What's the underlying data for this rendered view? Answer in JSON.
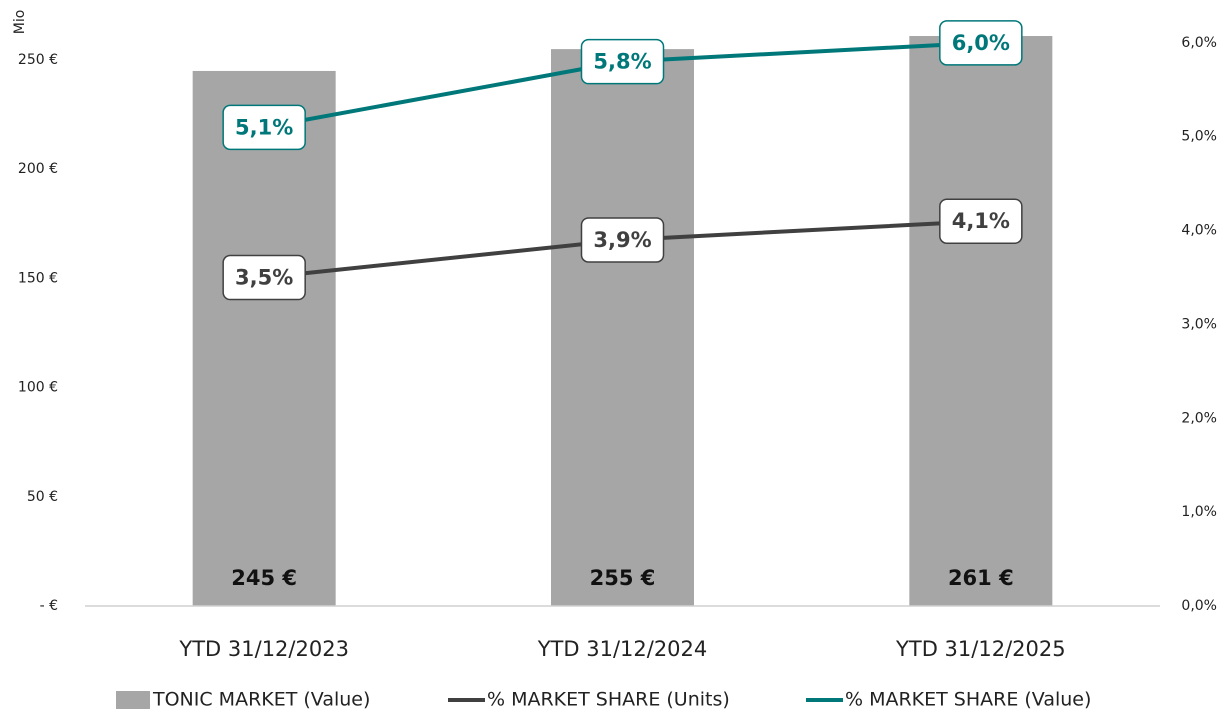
{
  "chart_data": {
    "type": "bar",
    "y_axis_label": "Mio",
    "categories": [
      "YTD 31/12/2023",
      "YTD 31/12/2024",
      "YTD 31/12/2025"
    ],
    "series": [
      {
        "name": "TONIC MARKET (Value)",
        "type": "bar",
        "color": "#a6a6a6",
        "values": [
          245,
          255,
          261
        ],
        "value_labels": [
          "245 €",
          "255 €",
          "261 €"
        ]
      },
      {
        "name": "% MARKET SHARE (Units)",
        "type": "line",
        "axis": "y2",
        "color": "#404040",
        "values": [
          3.5,
          3.9,
          4.1
        ],
        "value_labels": [
          "3,5%",
          "3,9%",
          "4,1%"
        ]
      },
      {
        "name": "% MARKET SHARE (Value)",
        "type": "line",
        "axis": "y2",
        "color": "#00787a",
        "values": [
          5.1,
          5.8,
          6.0
        ],
        "value_labels": [
          "5,1%",
          "5,8%",
          "6,0%"
        ]
      }
    ],
    "ylim": [
      0,
      260
    ],
    "yticks": [
      {
        "value": 0,
        "label": "-  €"
      },
      {
        "value": 50,
        "label": "50 €"
      },
      {
        "value": 100,
        "label": "100 €"
      },
      {
        "value": 150,
        "label": "150 €"
      },
      {
        "value": 200,
        "label": "200 €"
      },
      {
        "value": 250,
        "label": "250 €"
      }
    ],
    "y2lim": [
      0,
      6.05
    ],
    "y2ticks": [
      {
        "value": 0,
        "label": "0,0%"
      },
      {
        "value": 1,
        "label": "1,0%"
      },
      {
        "value": 2,
        "label": "2,0%"
      },
      {
        "value": 3,
        "label": "3,0%"
      },
      {
        "value": 4,
        "label": "4,0%"
      },
      {
        "value": 5,
        "label": "5,0%"
      },
      {
        "value": 6,
        "label": "6,0%"
      }
    ],
    "legend": "bottom"
  }
}
